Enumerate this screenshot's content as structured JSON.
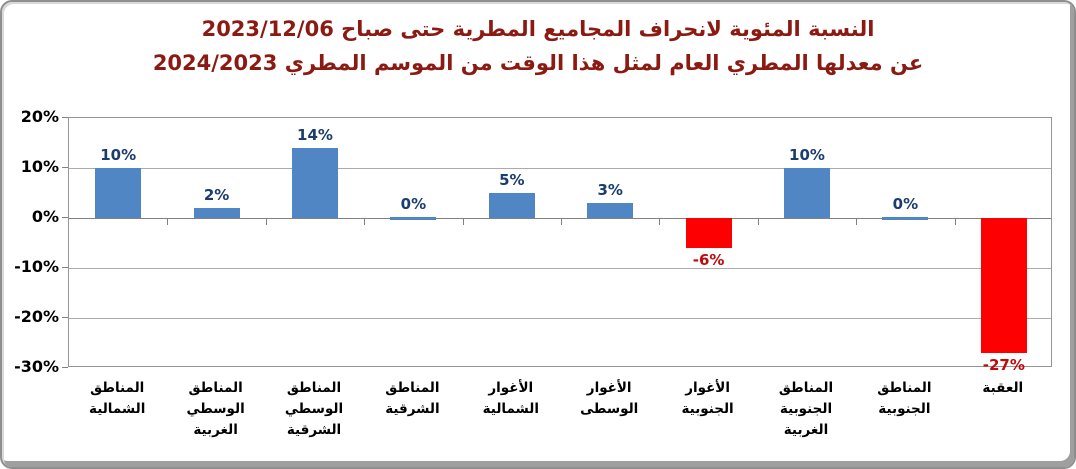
{
  "title": {
    "line1": "النسبة المئوية لانحراف المجاميع المطرية حتى صباح 2023/12/06",
    "line2": "عن معدلها المطري العام لمثل هذا الوقت من الموسم المطري 2024/2023",
    "color": "#8B1A12"
  },
  "chart_data": {
    "type": "bar",
    "title": "النسبة المئوية لانحراف المجاميع المطرية حتى صباح 2023/12/06 عن معدلها المطري العام لمثل هذا الوقت من الموسم المطري 2024/2023",
    "categories": [
      "المناطق الشمالية",
      "المناطق الوسطي الغربية",
      "المناطق الوسطي الشرقية",
      "المناطق الشرقية",
      "الأغوار الشمالية",
      "الأغوار الوسطى",
      "الأغوار الجنوبية",
      "المناطق الجنوبية الغربية",
      "المناطق الجنوبية",
      "العقبة"
    ],
    "category_display": [
      "المناطق\nالشمالية",
      "المناطق\nالوسطي\nالغربية",
      "المناطق\nالوسطي\nالشرقية",
      "المناطق\nالشرقية",
      "الأغوار\nالشمالية",
      "الأغوار\nالوسطى",
      "الأغوار\nالجنوبية",
      "المناطق\nالجنوبية\nالغربية",
      "المناطق\nالجنوبية",
      "العقبة"
    ],
    "values": [
      10,
      2,
      14,
      0,
      5,
      3,
      -6,
      10,
      0,
      -27
    ],
    "data_labels": [
      "10%",
      "2%",
      "14%",
      "0%",
      "5%",
      "3%",
      "-6%",
      "10%",
      "0%",
      "-27%"
    ],
    "xlabel": "",
    "ylabel": "",
    "ylim": [
      -30,
      20
    ],
    "y_ticks": [
      20,
      10,
      0,
      -10,
      -20,
      -30
    ],
    "y_tick_labels": [
      "20%",
      "10%",
      "0%",
      "-10%",
      "-20%",
      "-30%"
    ],
    "grid": true,
    "legend": "none",
    "colors": {
      "positive_bar": "#5186C5",
      "negative_bar": "#FD0002",
      "positive_label": "#1A3C6E",
      "negative_label": "#BE0A0A",
      "axis": "#808080",
      "gridline": "#ABABAB",
      "title": "#8B1A12"
    }
  }
}
